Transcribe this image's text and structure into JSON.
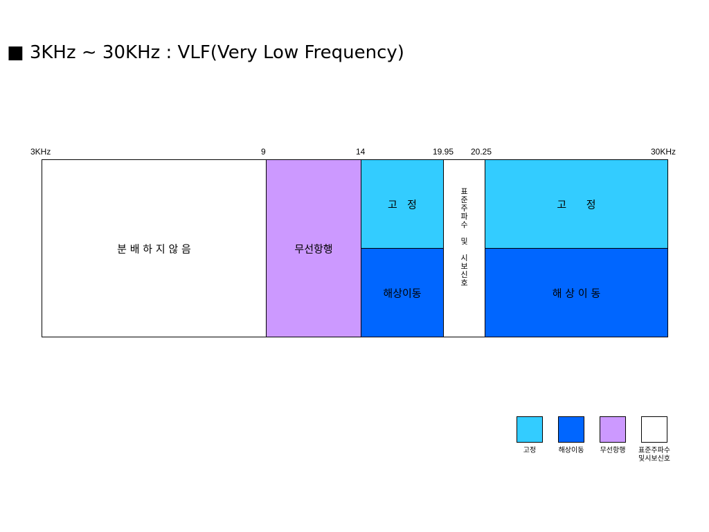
{
  "title": "■ 3KHz ∼ 30KHz : VLF(Very Low Frequency)",
  "axis": {
    "start_label": "3KHz",
    "end_label": "30KHz",
    "ticks": [
      "9",
      "14",
      "19.95",
      "20.25"
    ]
  },
  "bands": {
    "unallocated": "분 배 하 지 않 음",
    "radionav": "무선항행",
    "fixed_1": "고   정",
    "maritime_1": "해상이동",
    "std_freq": "표\n준\n주\n파\n수\n\n및\n\n시\n보\n신\n호",
    "fixed_2": "고      정",
    "maritime_2": "해 상 이 동"
  },
  "colors": {
    "fixed": "#33ccff",
    "maritime": "#0066ff",
    "radionav": "#cc99ff",
    "std_freq": "#ffffff"
  },
  "legend": [
    {
      "label": "고정"
    },
    {
      "label": "해상이동"
    },
    {
      "label": "무선항행"
    },
    {
      "label": "표준주파수\n및시보신호"
    }
  ]
}
